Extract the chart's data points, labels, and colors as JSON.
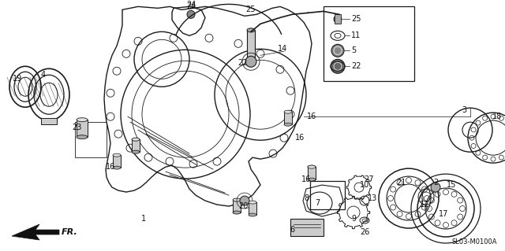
{
  "bg_color": "#f5f5f0",
  "fig_width": 6.4,
  "fig_height": 3.19,
  "dpi": 100,
  "diagram_code": "SL03-M0100A",
  "fr_label": "FR.",
  "line_color": "#1a1a1a",
  "text_color": "#111111",
  "gray_fill": "#b8b8b8",
  "light_gray": "#d8d8d8"
}
